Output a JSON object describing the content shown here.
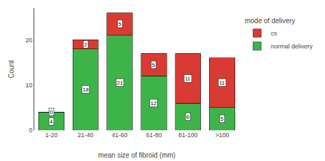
{
  "chart_data": {
    "type": "bar",
    "stacked": true,
    "xlabel": "mean size of fibroid (mm)",
    "ylabel": "Count",
    "categories": [
      "1-20",
      "21-40",
      "41-60",
      "61-80",
      "81-100",
      ">100"
    ],
    "series": [
      {
        "name": "normal delivery",
        "color": "#3db34a",
        "values": [
          4,
          18,
          21,
          12,
          6,
          5
        ]
      },
      {
        "name": "cs",
        "color": "#d93a34",
        "values": [
          0,
          2,
          5,
          5,
          11,
          11
        ]
      }
    ],
    "legend_title": "mode of delivery",
    "legend": "right",
    "ylim": [
      0,
      27
    ],
    "yticks": [
      0,
      10,
      20
    ],
    "grid": false,
    "data_labels": true
  }
}
